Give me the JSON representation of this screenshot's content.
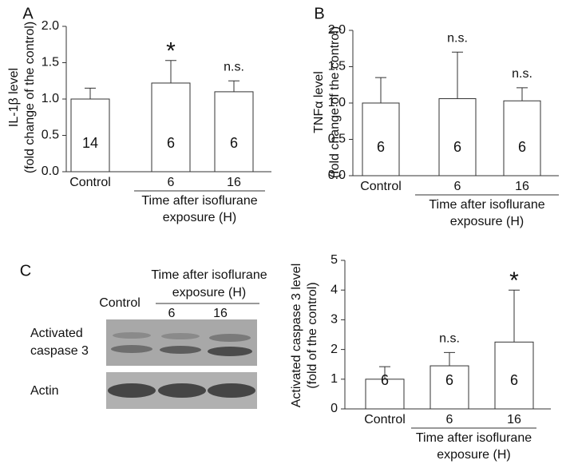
{
  "chart_data": [
    {
      "type": "bar",
      "panel": "A",
      "ylabel": [
        "IL-1β level",
        "(fold change of the control)"
      ],
      "categories": [
        "Control",
        "6",
        "16"
      ],
      "values": [
        1.0,
        1.22,
        1.1
      ],
      "errors": [
        0.15,
        0.31,
        0.15
      ],
      "n_labels": [
        "14",
        "6",
        "6"
      ],
      "significance": [
        null,
        "*",
        "n.s."
      ],
      "color": "#ffffff",
      "ylim": [
        0,
        2
      ],
      "yticks": [
        {
          "value": 0,
          "label": "0.0"
        },
        0.5,
        {
          "value": 1,
          "label": "1.0"
        },
        1.5,
        {
          "value": 2,
          "label": "2.0"
        }
      ],
      "group_label": [
        "Time after isoflurane",
        "exposure (H)"
      ]
    },
    {
      "type": "bar",
      "panel": "B",
      "ylabel": [
        "TNFα level",
        "(fold change of the control)"
      ],
      "categories": [
        "Control",
        "6",
        "16"
      ],
      "values": [
        1.0,
        1.06,
        1.03
      ],
      "errors": [
        0.35,
        0.64,
        0.18
      ],
      "n_labels": [
        "6",
        "6",
        "6"
      ],
      "significance": [
        null,
        "n.s.",
        "n.s."
      ],
      "color": "#ffffff",
      "ylim": [
        0,
        2
      ],
      "yticks": [
        {
          "value": 0,
          "label": "0.0"
        },
        0.5,
        {
          "value": 1,
          "label": "1.0"
        },
        1.5,
        {
          "value": 2,
          "label": "2.0"
        }
      ],
      "group_label": [
        "Time after isoflurane",
        "exposure (H)"
      ]
    },
    {
      "type": "bar",
      "panel": "C",
      "ylabel": [
        "Activated caspase 3 level",
        "(fold of the control)"
      ],
      "categories": [
        "Control",
        "6",
        "16"
      ],
      "values": [
        1.0,
        1.45,
        2.25
      ],
      "errors": [
        0.42,
        0.45,
        1.75
      ],
      "n_labels": [
        "6",
        "6",
        "6"
      ],
      "significance": [
        null,
        "n.s.",
        "*"
      ],
      "color": "#ffffff",
      "ylim": [
        0,
        5
      ],
      "yticks": [
        0,
        1,
        2,
        3,
        4,
        5
      ],
      "group_label": [
        "Time after isoflurane",
        "exposure (H)"
      ]
    }
  ],
  "blot": {
    "control_label": "Control",
    "group_label": [
      "Time after isoflurane",
      "exposure (H)"
    ],
    "lanes": [
      "6",
      "16"
    ],
    "rows": [
      [
        "Activated",
        "caspase 3"
      ],
      [
        "Actin"
      ]
    ]
  }
}
